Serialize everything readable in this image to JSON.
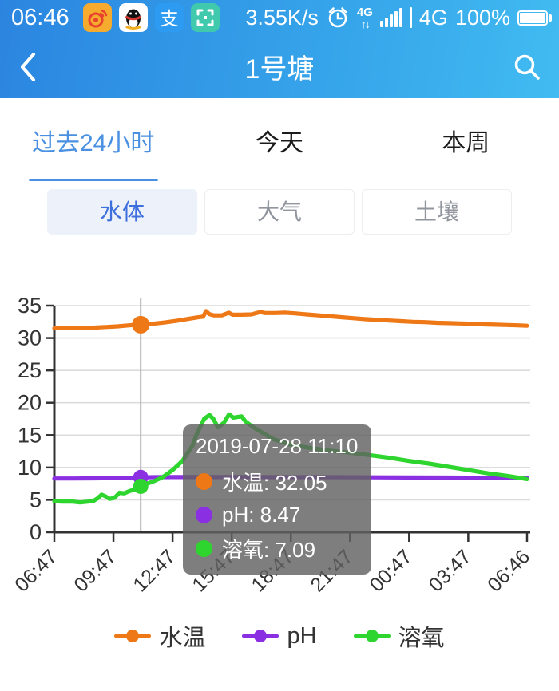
{
  "status_bar": {
    "time": "06:46",
    "net_speed": "3.55K/s",
    "sim_badge": "4G",
    "sim_arrows": "↑↓",
    "network": "4G",
    "battery": "100%",
    "alipay_glyph": "支"
  },
  "header": {
    "title": "1号塘"
  },
  "tabs": {
    "items": [
      {
        "label": "过去24小时"
      },
      {
        "label": "今天"
      },
      {
        "label": "本周"
      }
    ],
    "active_index": 0
  },
  "subtabs": {
    "items": [
      {
        "label": "水体"
      },
      {
        "label": "大气"
      },
      {
        "label": "土壤"
      }
    ],
    "active_index": 0
  },
  "tooltip": {
    "datetime": "2019-07-28 11:10",
    "rows": [
      {
        "text": "水温: 32.05",
        "color": "#ee7716"
      },
      {
        "text": "pH: 8.47",
        "color": "#8b2fe2"
      },
      {
        "text": "溶氧: 7.09",
        "color": "#2ed52e"
      }
    ]
  },
  "legend": {
    "items": [
      {
        "label": "水温",
        "color": "#ee7716"
      },
      {
        "label": "pH",
        "color": "#8b2fe2"
      },
      {
        "label": "溶氧",
        "color": "#2ed52e"
      }
    ]
  },
  "colors": {
    "header_gradient_left": "#2b85e0",
    "header_gradient_right": "#41bbf1",
    "accent_blue": "#4a90e2",
    "axis": "#333333",
    "gridline": "#dcdcdc",
    "crosshair": "#b5b5b5"
  },
  "chart_data": {
    "type": "line",
    "title": "",
    "xlabel": "",
    "ylabel": "",
    "grid": true,
    "legend_position": "bottom",
    "x_axis": {
      "tick_labels": [
        "06:47",
        "09:47",
        "12:47",
        "15:47",
        "18:47",
        "21:47",
        "00:47",
        "03:47",
        "06:46"
      ],
      "tick_hours": [
        0,
        3,
        6,
        9,
        12,
        15,
        18,
        21,
        23.983
      ],
      "range_hours": [
        0,
        23.983
      ]
    },
    "y_axis": {
      "ticks": [
        0,
        5,
        10,
        15,
        20,
        25,
        30,
        35
      ],
      "range": [
        0,
        35
      ]
    },
    "crosshair": {
      "hour": 4.383,
      "datetime": "2019-07-28 11:10"
    },
    "series": [
      {
        "name": "水温",
        "color": "#ee7716",
        "marker_value": 32.05,
        "points": [
          [
            0,
            31.5
          ],
          [
            0.7,
            31.5
          ],
          [
            1.4,
            31.55
          ],
          [
            2,
            31.6
          ],
          [
            2.6,
            31.7
          ],
          [
            3.2,
            31.8
          ],
          [
            3.8,
            31.95
          ],
          [
            4.38,
            32.05
          ],
          [
            5,
            32.2
          ],
          [
            5.6,
            32.4
          ],
          [
            6.2,
            32.65
          ],
          [
            6.8,
            32.95
          ],
          [
            7.3,
            33.2
          ],
          [
            7.55,
            33.3
          ],
          [
            7.7,
            34.15
          ],
          [
            7.85,
            33.7
          ],
          [
            8.1,
            33.5
          ],
          [
            8.5,
            33.5
          ],
          [
            8.85,
            33.9
          ],
          [
            9.05,
            33.6
          ],
          [
            9.5,
            33.6
          ],
          [
            10,
            33.65
          ],
          [
            10.45,
            34.0
          ],
          [
            10.7,
            33.85
          ],
          [
            11.2,
            33.85
          ],
          [
            11.7,
            33.9
          ],
          [
            12.2,
            33.8
          ],
          [
            12.8,
            33.65
          ],
          [
            13.4,
            33.5
          ],
          [
            14,
            33.35
          ],
          [
            14.6,
            33.2
          ],
          [
            15.2,
            33.05
          ],
          [
            15.8,
            32.9
          ],
          [
            16.4,
            32.8
          ],
          [
            17,
            32.7
          ],
          [
            17.6,
            32.6
          ],
          [
            18.2,
            32.5
          ],
          [
            18.8,
            32.45
          ],
          [
            19.4,
            32.35
          ],
          [
            20,
            32.3
          ],
          [
            20.6,
            32.25
          ],
          [
            21.2,
            32.2
          ],
          [
            21.8,
            32.1
          ],
          [
            22.4,
            32.05
          ],
          [
            23,
            32.0
          ],
          [
            23.5,
            31.95
          ],
          [
            23.98,
            31.9
          ]
        ]
      },
      {
        "name": "pH",
        "color": "#8b2fe2",
        "marker_value": 8.47,
        "points": [
          [
            0,
            8.3
          ],
          [
            1,
            8.3
          ],
          [
            2,
            8.32
          ],
          [
            3,
            8.36
          ],
          [
            4,
            8.42
          ],
          [
            4.38,
            8.47
          ],
          [
            5,
            8.5
          ],
          [
            6,
            8.52
          ],
          [
            8,
            8.52
          ],
          [
            10,
            8.52
          ],
          [
            12,
            8.5
          ],
          [
            14,
            8.5
          ],
          [
            16,
            8.48
          ],
          [
            18,
            8.46
          ],
          [
            20,
            8.44
          ],
          [
            22,
            8.42
          ],
          [
            23,
            8.4
          ],
          [
            23.98,
            8.38
          ]
        ]
      },
      {
        "name": "溶氧",
        "color": "#2ed52e",
        "marker_value": 7.09,
        "points": [
          [
            0,
            4.8
          ],
          [
            0.4,
            4.72
          ],
          [
            0.9,
            4.75
          ],
          [
            1.3,
            4.6
          ],
          [
            1.7,
            4.72
          ],
          [
            2,
            4.85
          ],
          [
            2.2,
            5.25
          ],
          [
            2.4,
            5.8
          ],
          [
            2.6,
            5.55
          ],
          [
            2.8,
            5.15
          ],
          [
            3.05,
            5.3
          ],
          [
            3.3,
            6.1
          ],
          [
            3.55,
            6.0
          ],
          [
            3.8,
            6.35
          ],
          [
            4.1,
            6.6
          ],
          [
            4.38,
            7.09
          ],
          [
            4.7,
            7.5
          ],
          [
            5,
            7.8
          ],
          [
            5.5,
            8.5
          ],
          [
            6,
            9.6
          ],
          [
            6.5,
            11.0
          ],
          [
            7,
            13.3
          ],
          [
            7.25,
            15.3
          ],
          [
            7.6,
            17.5
          ],
          [
            7.87,
            18.1
          ],
          [
            8.07,
            17.5
          ],
          [
            8.3,
            16.2
          ],
          [
            8.6,
            16.9
          ],
          [
            8.87,
            18.2
          ],
          [
            9.08,
            17.7
          ],
          [
            9.5,
            17.9
          ],
          [
            9.7,
            17.1
          ],
          [
            10.1,
            16.2
          ],
          [
            10.6,
            15.3
          ],
          [
            11.1,
            14.4
          ],
          [
            12,
            13.5
          ],
          [
            13,
            13.0
          ],
          [
            14,
            12.6
          ],
          [
            15,
            12.3
          ],
          [
            16,
            11.9
          ],
          [
            17,
            11.5
          ],
          [
            18,
            11.0
          ],
          [
            19,
            10.6
          ],
          [
            20,
            10.1
          ],
          [
            21,
            9.6
          ],
          [
            22,
            9.1
          ],
          [
            23,
            8.7
          ],
          [
            23.6,
            8.4
          ],
          [
            23.98,
            8.2
          ]
        ]
      }
    ]
  }
}
